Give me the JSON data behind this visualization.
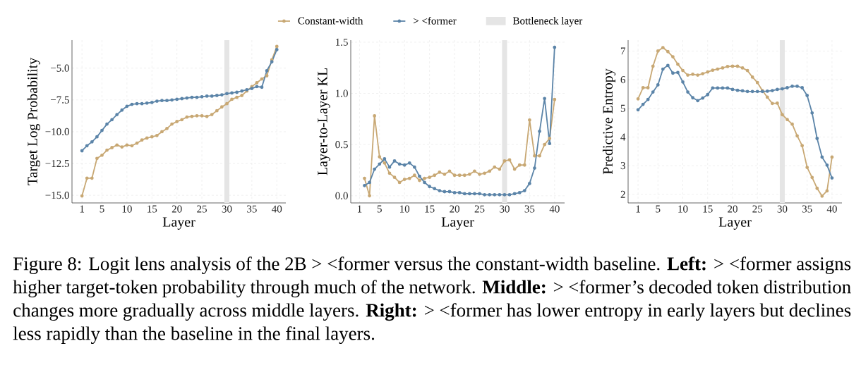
{
  "chart_data": [
    {
      "type": "line",
      "xlabel": "Layer",
      "ylabel": "Target Log Probability",
      "legend": "top",
      "grid": true,
      "marker": "circle",
      "x": [
        1,
        2,
        3,
        4,
        5,
        6,
        7,
        8,
        9,
        10,
        11,
        12,
        13,
        14,
        15,
        16,
        17,
        18,
        19,
        20,
        21,
        22,
        23,
        24,
        25,
        26,
        27,
        28,
        29,
        30,
        31,
        32,
        33,
        34,
        35,
        36,
        37,
        38,
        39,
        40
      ],
      "xlim": [
        -1,
        41.8
      ],
      "ylim": [
        -15.6,
        -2.8
      ],
      "xticks": [
        1,
        5,
        10,
        15,
        20,
        25,
        30,
        35,
        40
      ],
      "yticks": [
        {
          "value": -15,
          "label": "−15.0"
        },
        {
          "value": -12.5,
          "label": "−12.5"
        },
        {
          "value": -10,
          "label": "−10.0"
        },
        {
          "value": -7.5,
          "label": "−7.5"
        },
        {
          "value": -5,
          "label": "−5.0"
        }
      ],
      "bands": [
        {
          "axis": "x",
          "from": 29.5,
          "to": 30.5,
          "label": "Bottleneck layer",
          "color": "#e5e5e5"
        }
      ],
      "series": [
        {
          "name": "Constant-width",
          "color": "#c8a874",
          "values": [
            -15.05,
            -13.65,
            -13.65,
            -12.1,
            -11.85,
            -11.45,
            -11.25,
            -11.05,
            -11.2,
            -11.05,
            -11.1,
            -10.9,
            -10.65,
            -10.5,
            -10.4,
            -10.3,
            -10.0,
            -9.75,
            -9.4,
            -9.2,
            -9.05,
            -8.85,
            -8.8,
            -8.75,
            -8.75,
            -8.8,
            -8.65,
            -8.35,
            -8.05,
            -7.8,
            -7.45,
            -7.3,
            -7.15,
            -6.8,
            -6.45,
            -6.15,
            -5.85,
            -5.6,
            -4.35,
            -3.3
          ]
        },
        {
          "name": "> <former",
          "color": "#5b84a8",
          "values": [
            -11.5,
            -11.1,
            -10.8,
            -10.4,
            -9.9,
            -9.4,
            -9.05,
            -8.65,
            -8.3,
            -8.0,
            -7.85,
            -7.8,
            -7.8,
            -7.75,
            -7.7,
            -7.6,
            -7.55,
            -7.55,
            -7.5,
            -7.45,
            -7.4,
            -7.35,
            -7.3,
            -7.3,
            -7.25,
            -7.2,
            -7.2,
            -7.15,
            -7.1,
            -7.0,
            -6.95,
            -6.9,
            -6.8,
            -6.7,
            -6.6,
            -6.45,
            -6.5,
            -5.2,
            -4.5,
            -3.55
          ]
        }
      ],
      "annotations": [
        "Figure 8: Logit lens analysis of the 2B > <former versus the constant-width baseline. **Left:** > <former assigns higher target-token probability through much of the network. **Middle:** > <former’s decoded token distribution changes more gradually across middle layers. **Right:** > <former has lower entropy in early layers but declines less rapidly than the baseline in the final layers."
      ]
    },
    {
      "type": "line",
      "xlabel": "Layer",
      "ylabel": "Layer-to-Layer KL",
      "grid": true,
      "marker": "circle",
      "xlim": [
        -0.75,
        42
      ],
      "ylim": [
        -0.07,
        1.52
      ],
      "xticks": [
        1,
        5,
        10,
        15,
        20,
        25,
        30,
        35,
        40
      ],
      "yticks": [
        {
          "value": 0,
          "label": "0.0"
        },
        {
          "value": 0.5,
          "label": "0.5"
        },
        {
          "value": 1,
          "label": "1.0"
        },
        {
          "value": 1.5,
          "label": "1.5"
        }
      ],
      "bands": [
        {
          "axis": "x",
          "from": 29.5,
          "to": 30.5,
          "color": "#e5e5e5"
        }
      ],
      "series": [
        {
          "color": "#c8a874",
          "x": [
            2,
            3,
            4,
            5,
            6,
            7,
            8,
            9,
            10,
            11,
            12,
            13,
            14,
            15,
            16,
            17,
            18,
            19,
            20,
            21,
            22,
            23,
            24,
            25,
            26,
            27,
            28,
            29,
            30,
            31,
            32,
            33,
            34,
            35,
            36,
            37,
            38,
            39,
            40
          ],
          "values": [
            0.17,
            0.0,
            0.78,
            0.38,
            0.32,
            0.22,
            0.18,
            0.13,
            0.16,
            0.17,
            0.2,
            0.15,
            0.17,
            0.18,
            0.2,
            0.23,
            0.21,
            0.24,
            0.2,
            0.2,
            0.2,
            0.21,
            0.24,
            0.21,
            0.22,
            0.24,
            0.28,
            0.26,
            0.34,
            0.35,
            0.26,
            0.3,
            0.3,
            0.74,
            0.39,
            0.39,
            0.5,
            0.56,
            0.94
          ]
        },
        {
          "color": "#5b84a8",
          "x": [
            2,
            3,
            4,
            5,
            6,
            7,
            8,
            9,
            10,
            11,
            12,
            13,
            14,
            15,
            16,
            17,
            18,
            19,
            20,
            21,
            22,
            23,
            24,
            25,
            26,
            27,
            28,
            29,
            30,
            31,
            32,
            33,
            34,
            35,
            36,
            37,
            38,
            39,
            40
          ],
          "values": [
            0.1,
            0.13,
            0.26,
            0.31,
            0.36,
            0.28,
            0.34,
            0.31,
            0.3,
            0.32,
            0.28,
            0.19,
            0.13,
            0.09,
            0.07,
            0.05,
            0.04,
            0.04,
            0.03,
            0.03,
            0.02,
            0.02,
            0.02,
            0.02,
            0.01,
            0.01,
            0.01,
            0.01,
            0.01,
            0.01,
            0.02,
            0.03,
            0.05,
            0.12,
            0.27,
            0.63,
            0.95,
            0.51,
            1.45
          ]
        }
      ]
    },
    {
      "type": "line",
      "xlabel": "Layer",
      "ylabel": "Predictive Entropy",
      "grid": true,
      "marker": "circle",
      "x": [
        1,
        2,
        3,
        4,
        5,
        6,
        7,
        8,
        9,
        10,
        11,
        12,
        13,
        14,
        15,
        16,
        17,
        18,
        19,
        20,
        21,
        22,
        23,
        24,
        25,
        26,
        27,
        28,
        29,
        30,
        31,
        32,
        33,
        34,
        35,
        36,
        37,
        38,
        39,
        40
      ],
      "xlim": [
        -1,
        42
      ],
      "ylim": [
        1.7,
        7.38
      ],
      "xticks": [
        1,
        5,
        10,
        15,
        20,
        25,
        30,
        35,
        40
      ],
      "yticks": [
        2,
        3,
        4,
        5,
        6,
        7
      ],
      "bands": [
        {
          "axis": "x",
          "from": 29.5,
          "to": 30.5,
          "color": "#e5e5e5"
        }
      ],
      "series": [
        {
          "color": "#c8a874",
          "values": [
            5.33,
            5.72,
            5.72,
            6.47,
            7.0,
            7.12,
            6.98,
            6.8,
            6.54,
            6.32,
            6.16,
            6.19,
            6.16,
            6.21,
            6.27,
            6.33,
            6.37,
            6.41,
            6.46,
            6.47,
            6.47,
            6.41,
            6.32,
            6.09,
            5.9,
            5.62,
            5.39,
            5.17,
            5.18,
            4.78,
            4.61,
            4.45,
            4.04,
            3.7,
            2.94,
            2.59,
            2.21,
            1.94,
            2.12,
            3.3
          ]
        },
        {
          "color": "#5b84a8",
          "values": [
            4.95,
            5.14,
            5.31,
            5.57,
            5.82,
            6.37,
            6.5,
            6.23,
            6.25,
            5.92,
            5.57,
            5.37,
            5.27,
            5.36,
            5.48,
            5.71,
            5.71,
            5.71,
            5.71,
            5.66,
            5.63,
            5.61,
            5.59,
            5.59,
            5.59,
            5.59,
            5.6,
            5.62,
            5.66,
            5.68,
            5.72,
            5.77,
            5.77,
            5.72,
            5.45,
            4.84,
            3.95,
            3.3,
            3.02,
            2.57
          ]
        }
      ]
    }
  ]
}
